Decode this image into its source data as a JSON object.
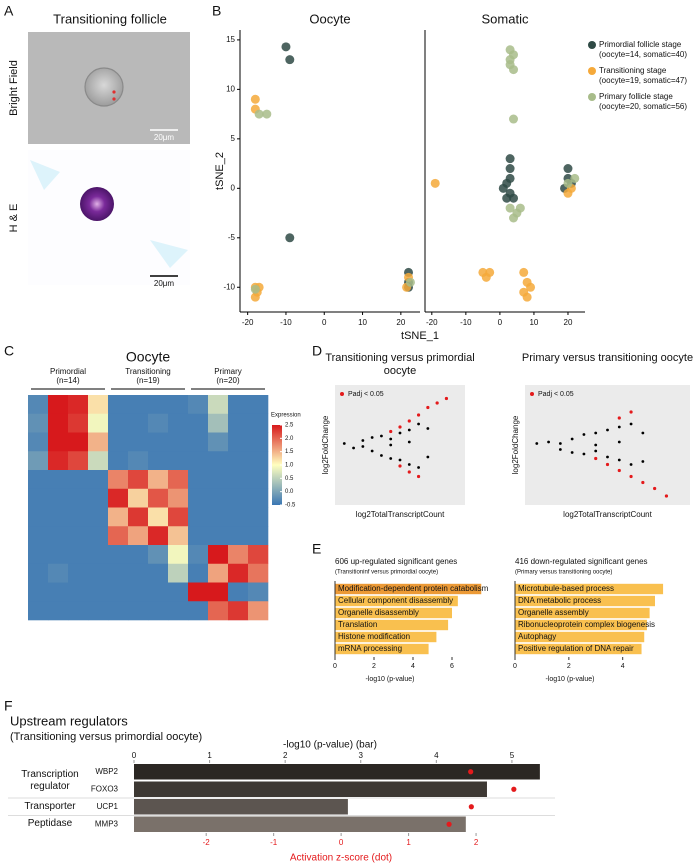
{
  "panel_labels": [
    "A",
    "B",
    "C",
    "D",
    "E",
    "F"
  ],
  "panel_a": {
    "title": "Transitioning follicle",
    "rows": [
      {
        "label": "Bright Field",
        "scale": "20μm"
      },
      {
        "label": "H & E",
        "scale": "20μm"
      }
    ]
  },
  "chart_data": [
    {
      "type": "scatter",
      "xlabel": "tSNE_1",
      "ylabel": "tSNE_2",
      "xlim": [
        -22,
        25
      ],
      "ylim": [
        -12.5,
        16
      ],
      "xticks": [
        -20,
        -10,
        0,
        10,
        20
      ],
      "yticks": [
        -10,
        -5,
        0,
        5,
        10,
        15
      ],
      "series": [
        {
          "name": "Primordial follicle stage",
          "note": "(oocyte=14, somatic=40)",
          "color": "#2f4a45"
        },
        {
          "name": "Transitioning stage",
          "note": "(oocyte=19, somatic=47)",
          "color": "#f5a93a"
        },
        {
          "name": "Primary follicle stage",
          "note": "(oocyte=20, somatic=56)",
          "color": "#a8bc8a"
        }
      ],
      "facets": [
        {
          "title": "Oocyte",
          "points": [
            {
              "x": [
                -10,
                -9,
                -9,
                22,
                22,
                22
              ],
              "y": [
                14.3,
                13,
                -5,
                -8.5,
                -9.5,
                -10
              ]
            },
            {
              "x": [
                -18,
                -18,
                -18,
                -17.5,
                -18,
                -17,
                22,
                21.5
              ],
              "y": [
                9,
                8,
                -10,
                -10.5,
                -11,
                -10,
                -9,
                -10
              ]
            },
            {
              "x": [
                -17,
                -15,
                -18,
                22.5
              ],
              "y": [
                7.5,
                7.5,
                -10.2,
                -9.5
              ]
            }
          ]
        },
        {
          "title": "Somatic",
          "points": [
            {
              "x": [
                3,
                3,
                2,
                3,
                1,
                4,
                20,
                20,
                21,
                19,
                3,
                2
              ],
              "y": [
                3,
                2,
                0.5,
                -0.5,
                0,
                -1,
                2,
                1,
                0.5,
                0,
                1,
                -1
              ]
            },
            {
              "x": [
                -19,
                -5,
                -4,
                -3,
                7,
                8,
                7,
                8,
                9,
                20,
                21
              ],
              "y": [
                0.5,
                -8.5,
                -9,
                -8.5,
                -8.5,
                -9.5,
                -10.5,
                -11,
                -10,
                -0.5,
                0
              ]
            },
            {
              "x": [
                3,
                4,
                3,
                4,
                3,
                4,
                3,
                5,
                4,
                6,
                20,
                22
              ],
              "y": [
                14,
                13.5,
                13,
                12,
                12.5,
                7,
                -2,
                -2.5,
                -3,
                -2,
                0.5,
                1
              ]
            }
          ]
        }
      ]
    },
    {
      "type": "heatmap",
      "title": "Oocyte",
      "groups": [
        {
          "name": "Primordial",
          "n": "(n=14)"
        },
        {
          "name": "Transitioning",
          "n": "(n=19)"
        },
        {
          "name": "Primary",
          "n": "(n=20)"
        }
      ],
      "matrix": [
        [
          -0.3,
          2.5,
          2.4,
          1.2,
          -0.4,
          -0.4,
          -0.4,
          -0.4,
          -0.3,
          0.6,
          -0.4,
          -0.4
        ],
        [
          -0.2,
          2.5,
          2.3,
          0.9,
          -0.4,
          -0.4,
          -0.3,
          -0.4,
          -0.4,
          0.3,
          -0.4,
          -0.4
        ],
        [
          -0.3,
          2.5,
          2.5,
          1.5,
          -0.4,
          -0.4,
          -0.4,
          -0.4,
          -0.4,
          -0.2,
          -0.4,
          -0.4
        ],
        [
          -0.1,
          2.4,
          2.2,
          0.6,
          -0.4,
          -0.3,
          -0.4,
          -0.4,
          -0.4,
          -0.4,
          -0.4,
          -0.4
        ],
        [
          -0.4,
          -0.4,
          -0.4,
          -0.4,
          1.8,
          2.2,
          1.5,
          2.0,
          -0.4,
          -0.4,
          -0.4,
          -0.4
        ],
        [
          -0.4,
          -0.4,
          -0.4,
          -0.4,
          2.4,
          1.3,
          2.1,
          1.7,
          -0.4,
          -0.4,
          -0.4,
          -0.4
        ],
        [
          -0.4,
          -0.4,
          -0.4,
          -0.4,
          1.5,
          2.3,
          1.2,
          2.2,
          -0.4,
          -0.4,
          -0.4,
          -0.4
        ],
        [
          -0.4,
          -0.4,
          -0.4,
          -0.4,
          2.0,
          1.6,
          2.4,
          1.4,
          -0.4,
          -0.4,
          -0.4,
          -0.4
        ],
        [
          -0.4,
          -0.4,
          -0.4,
          -0.4,
          -0.4,
          -0.4,
          -0.2,
          0.9,
          -0.3,
          2.5,
          1.8,
          2.2
        ],
        [
          -0.4,
          -0.3,
          -0.4,
          -0.4,
          -0.4,
          -0.4,
          -0.4,
          0.5,
          -0.4,
          1.6,
          2.4,
          1.9
        ],
        [
          -0.4,
          -0.4,
          -0.4,
          -0.4,
          -0.4,
          -0.4,
          -0.4,
          -0.4,
          2.5,
          2.5,
          -0.4,
          -0.3
        ],
        [
          -0.4,
          -0.4,
          -0.4,
          -0.4,
          -0.4,
          -0.4,
          -0.4,
          -0.4,
          -0.4,
          2.0,
          2.3,
          1.7
        ]
      ],
      "clim": [
        -0.5,
        2.5
      ],
      "colors": [
        "#3a76b3",
        "#ffffbf",
        "#d7191c"
      ],
      "colorbar_title": "Expression",
      "colorbar_ticks": [
        2.5,
        {
          "value": 2,
          "label": "2.0"
        },
        1.5,
        {
          "value": 1,
          "label": "1.0"
        },
        0.5,
        {
          "value": 0,
          "label": "0.0"
        },
        -0.5
      ]
    },
    {
      "type": "ma",
      "title": "Transitioning versus primordial oocyte",
      "xlabel": "log2TotalTranscriptCount",
      "ylabel": "log2FoldChange",
      "xlim": [
        0,
        7
      ],
      "ylim": [
        -4,
        4
      ],
      "series": [
        {
          "color": "#000000",
          "x": [
            0.5,
            1,
            1.5,
            2,
            2,
            2.5,
            2.5,
            3,
            3,
            3.5,
            3.5,
            4,
            4,
            4,
            4.5,
            4.5,
            5,
            5,
            3,
            1.5
          ],
          "y": [
            0.1,
            -0.2,
            0.3,
            -0.4,
            0.5,
            -0.7,
            0.6,
            -0.9,
            0.4,
            -1.0,
            0.8,
            -1.3,
            1.0,
            0.2,
            -1.5,
            1.4,
            -0.8,
            1.1,
            0,
            -0.1
          ]
        },
        {
          "name": "Padj < 0.05",
          "color": "#e41a1c",
          "x": [
            3,
            3.5,
            4,
            4.5,
            5,
            5.5,
            6,
            3.5,
            4,
            4.5
          ],
          "y": [
            0.9,
            1.2,
            1.6,
            2.0,
            2.5,
            2.8,
            3.1,
            -1.4,
            -1.8,
            -2.1
          ]
        }
      ]
    },
    {
      "type": "ma",
      "title": "Primary versus transitioning oocyte",
      "xlabel": "log2TotalTranscriptCount",
      "ylabel": "log2FoldChange",
      "xlim": [
        0,
        7
      ],
      "ylim": [
        -4,
        4
      ],
      "series": [
        {
          "color": "#000000",
          "x": [
            0.5,
            1,
            1.5,
            2,
            2,
            2.5,
            2.5,
            3,
            3,
            3.5,
            3.5,
            4,
            4,
            4,
            4.5,
            4.5,
            5,
            5,
            3,
            1.5
          ],
          "y": [
            0.1,
            0.2,
            -0.3,
            0.4,
            -0.5,
            0.7,
            -0.6,
            0.8,
            -0.4,
            1.0,
            -0.8,
            1.2,
            -1.0,
            0.2,
            1.4,
            -1.3,
            0.8,
            -1.1,
            0,
            0.1
          ]
        },
        {
          "name": "Padj < 0.05",
          "color": "#e41a1c",
          "x": [
            3,
            3.5,
            4,
            4.5,
            5,
            5.5,
            6,
            4,
            4.5
          ],
          "y": [
            -0.9,
            -1.3,
            -1.7,
            -2.1,
            -2.5,
            -2.9,
            -3.4,
            1.8,
            2.2
          ]
        }
      ]
    },
    {
      "type": "barh",
      "title": "606 up-regulated significant genes",
      "subtitle": "(Transitioninf versus primordial oocyte)",
      "xlabel": "-log10 (p-value)",
      "categories": [
        "Modification-dependent protein catabolism",
        "Cellular component disassembly",
        "Organelle disassembly",
        "Translation",
        "Histone modification",
        "mRNA processing"
      ],
      "values": [
        7.5,
        6.3,
        6.0,
        5.8,
        5.2,
        4.8
      ],
      "colors": [
        "#ec9a36",
        "#f9c04f",
        "#f9c04f",
        "#f9c04f",
        "#f9c04f",
        "#f9c04f"
      ],
      "xlim": [
        0,
        8
      ],
      "xticks": [
        0,
        2,
        4,
        6
      ]
    },
    {
      "type": "barh",
      "title": "416 down-regulated significant genes",
      "subtitle": "(Primary versus transitioning oocyte)",
      "xlabel": "-log10 (p-value)",
      "categories": [
        "Microtubule-based process",
        "DNA metabolic process",
        "Organelle assembly",
        "Ribonucleoprotein complex biogenesis",
        "Autophagy",
        "Positive regulation of DNA repair"
      ],
      "values": [
        5.5,
        5.2,
        5.0,
        4.9,
        4.8,
        4.7
      ],
      "colors": [
        "#f9c04f",
        "#f9c04f",
        "#f9c04f",
        "#f9c04f",
        "#f9c04f",
        "#f9c04f"
      ],
      "xlim": [
        0,
        6.5
      ],
      "xticks": [
        0,
        2,
        4
      ]
    },
    {
      "type": "bardot",
      "title": "Upstream regulators",
      "subtitle": "(Transitioning versus primordial oocyte)",
      "xlabel": "-log10 (p-value) (bar)",
      "x2label": "Activation z-score (dot)",
      "xlim": [
        0,
        5.57
      ],
      "xticks": [
        0,
        1,
        2,
        3,
        4,
        5
      ],
      "x2lim": [
        -3.07,
        3.17
      ],
      "x2ticks": [
        -2,
        -1,
        0,
        1,
        2
      ],
      "dot_color": "#e41a1c",
      "groups": [
        {
          "name": "Transcription regulator",
          "categories": [
            "WBP2",
            "FOXO3"
          ],
          "values": [
            5.37,
            4.67
          ],
          "zscores": [
            1.92,
            2.56
          ],
          "colors": [
            "#2b2723",
            "#3d3833"
          ]
        },
        {
          "name": "Transporter",
          "categories": [
            "UCP1"
          ],
          "values": [
            2.83
          ],
          "zscores": [
            1.93
          ],
          "colors": [
            "#5c5550"
          ]
        },
        {
          "name": "Peptidase",
          "categories": [
            "MMP3"
          ],
          "values": [
            4.39
          ],
          "zscores": [
            1.6
          ],
          "colors": [
            "#7a716a"
          ]
        }
      ]
    }
  ]
}
